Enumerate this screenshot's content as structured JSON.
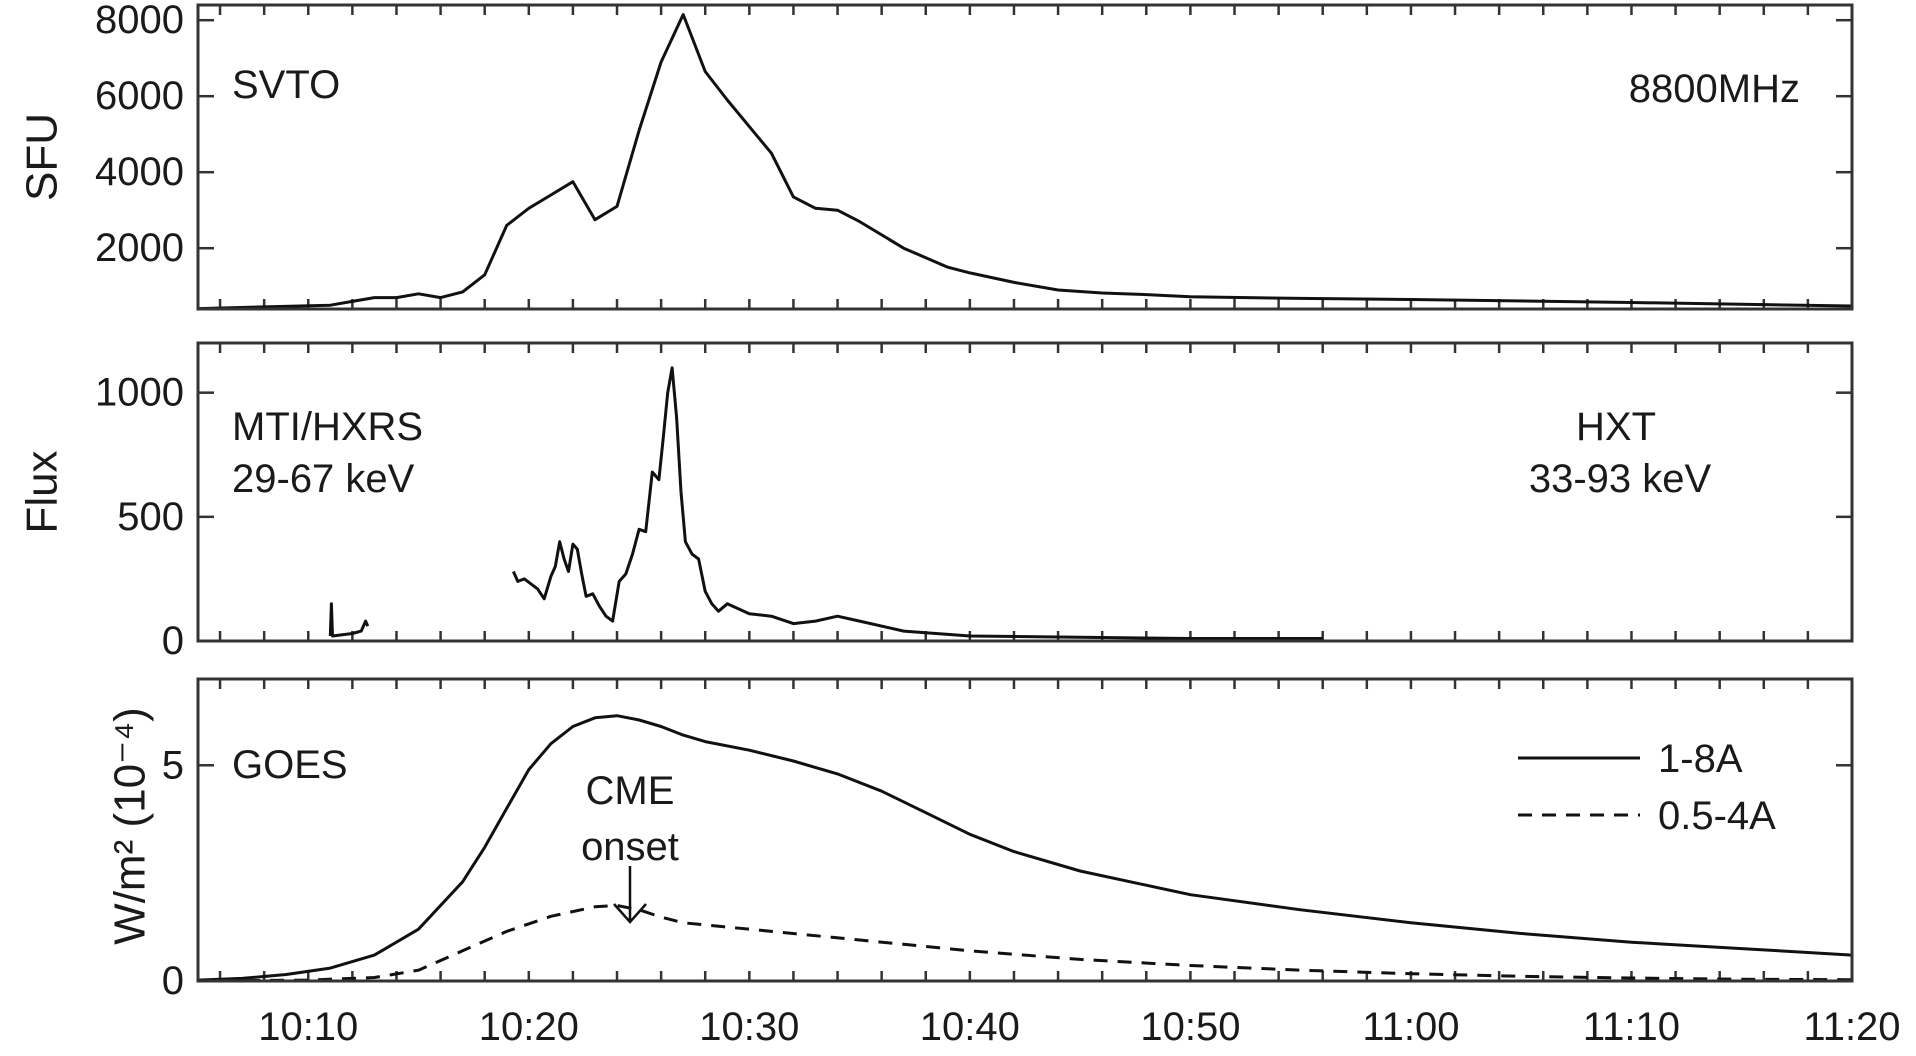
{
  "chart_data": [
    {
      "type": "line",
      "panel": "top",
      "ylabel": "SFU",
      "ylim": [
        400,
        8400
      ],
      "yticks": [
        2000,
        4000,
        6000,
        8000
      ],
      "xlim": [
        "10:05",
        "11:20"
      ],
      "annotations": [
        "SVTO",
        "8800MHz"
      ],
      "series": [
        {
          "style": "solid",
          "x": [
            "10:05",
            "10:11",
            "10:12",
            "10:13",
            "10:14",
            "10:15",
            "10:16",
            "10:17",
            "10:18",
            "10:19",
            "10:20",
            "10:21",
            "10:22",
            "10:23",
            "10:24",
            "10:25",
            "10:26",
            "10:27",
            "10:28",
            "10:29",
            "10:30",
            "10:31",
            "10:32",
            "10:33",
            "10:34",
            "10:35",
            "10:36",
            "10:37",
            "10:38",
            "10:39",
            "10:40",
            "10:42",
            "10:44",
            "10:46",
            "10:48",
            "10:50",
            "10:55",
            "11:00",
            "11:10",
            "11:20"
          ],
          "y": [
            410,
            500,
            600,
            700,
            700,
            800,
            700,
            850,
            1300,
            2600,
            3050,
            3400,
            3750,
            2750,
            3100,
            5100,
            6900,
            8150,
            6650,
            5900,
            5200,
            4500,
            3350,
            3050,
            3000,
            2700,
            2350,
            2000,
            1750,
            1500,
            1350,
            1100,
            900,
            820,
            780,
            720,
            680,
            650,
            570,
            480
          ]
        }
      ]
    },
    {
      "type": "line",
      "panel": "middle",
      "ylabel": "Flux",
      "ylim": [
        0,
        1200
      ],
      "yticks": [
        0,
        500,
        1000
      ],
      "xlim": [
        "10:05",
        "11:20"
      ],
      "annotations": [
        "MTI/HXRS",
        "29-67 keV",
        "HXT",
        "33-93 keV"
      ],
      "series": [
        {
          "style": "solid",
          "segment": "early",
          "x": [
            "10:11.0",
            "10:11.05",
            "10:11.1",
            "10:12.0",
            "10:12.4",
            "10:12.6",
            "10:12.7"
          ],
          "y": [
            20,
            150,
            20,
            30,
            40,
            80,
            60
          ]
        },
        {
          "style": "solid",
          "segment": "main",
          "x": [
            "10:19.3",
            "10:19.5",
            "10:19.8",
            "10:20.1",
            "10:20.4",
            "10:20.7",
            "10:21.0",
            "10:21.2",
            "10:21.4",
            "10:21.6",
            "10:21.8",
            "10:22.0",
            "10:22.2",
            "10:22.4",
            "10:22.6",
            "10:22.9",
            "10:23.2",
            "10:23.5",
            "10:23.8",
            "10:24.1",
            "10:24.4",
            "10:24.7",
            "10:25.0",
            "10:25.3",
            "10:25.6",
            "10:25.9",
            "10:26.1",
            "10:26.3",
            "10:26.5",
            "10:26.7",
            "10:26.9",
            "10:27.1",
            "10:27.4",
            "10:27.7",
            "10:28.0",
            "10:28.3",
            "10:28.6",
            "10:29",
            "10:30",
            "10:31",
            "10:32",
            "10:33",
            "10:34",
            "10:35",
            "10:37",
            "10:40",
            "10:45",
            "10:50",
            "10:56"
          ],
          "y": [
            280,
            240,
            250,
            230,
            210,
            170,
            260,
            300,
            400,
            330,
            280,
            390,
            370,
            270,
            180,
            190,
            140,
            100,
            80,
            240,
            270,
            350,
            450,
            440,
            680,
            650,
            820,
            1000,
            1100,
            900,
            600,
            400,
            350,
            330,
            200,
            150,
            120,
            150,
            110,
            100,
            70,
            80,
            100,
            80,
            40,
            20,
            15,
            10,
            10
          ]
        }
      ]
    },
    {
      "type": "line",
      "panel": "bottom",
      "ylabel": "W/m² (10⁻⁴)",
      "ylim": [
        0,
        7
      ],
      "yticks": [
        0,
        5
      ],
      "xlim": [
        "10:05",
        "11:20"
      ],
      "xticks": [
        "10:10",
        "10:20",
        "10:30",
        "10:40",
        "10:50",
        "11:00",
        "11:10",
        "11:20"
      ],
      "annotations": [
        "GOES",
        "CME",
        "onset"
      ],
      "legend": {
        "position": "top-right",
        "entries": [
          "1-8A",
          "0.5-4A"
        ]
      },
      "series": [
        {
          "name": "1-8A",
          "style": "solid",
          "x": [
            "10:05",
            "10:07",
            "10:09",
            "10:11",
            "10:13",
            "10:15",
            "10:17",
            "10:18",
            "10:19",
            "10:20",
            "10:21",
            "10:22",
            "10:23",
            "10:24",
            "10:25",
            "10:26",
            "10:27",
            "10:28",
            "10:30",
            "10:32",
            "10:34",
            "10:36",
            "10:38",
            "10:40",
            "10:42",
            "10:45",
            "10:50",
            "10:55",
            "11:00",
            "11:05",
            "11:10",
            "11:15",
            "11:20"
          ],
          "y": [
            0.02,
            0.06,
            0.15,
            0.3,
            0.6,
            1.2,
            2.3,
            3.1,
            4.0,
            4.9,
            5.5,
            5.9,
            6.1,
            6.15,
            6.05,
            5.9,
            5.7,
            5.55,
            5.35,
            5.1,
            4.8,
            4.4,
            3.9,
            3.4,
            3.0,
            2.55,
            2.0,
            1.65,
            1.35,
            1.1,
            0.9,
            0.75,
            0.6
          ]
        },
        {
          "name": "0.5-4A",
          "style": "dashed",
          "x": [
            "10:05",
            "10:10",
            "10:13",
            "10:15",
            "10:17",
            "10:19",
            "10:21",
            "10:23",
            "10:24",
            "10:25",
            "10:26",
            "10:27",
            "10:28",
            "10:30",
            "10:35",
            "10:40",
            "10:45",
            "10:50",
            "10:55",
            "11:00",
            "11:05",
            "11:10",
            "11:15",
            "11:20"
          ],
          "y": [
            0.0,
            0.02,
            0.08,
            0.25,
            0.7,
            1.15,
            1.5,
            1.72,
            1.75,
            1.65,
            1.48,
            1.35,
            1.3,
            1.2,
            0.95,
            0.7,
            0.5,
            0.36,
            0.25,
            0.17,
            0.11,
            0.07,
            0.04,
            0.03
          ]
        }
      ]
    }
  ]
}
